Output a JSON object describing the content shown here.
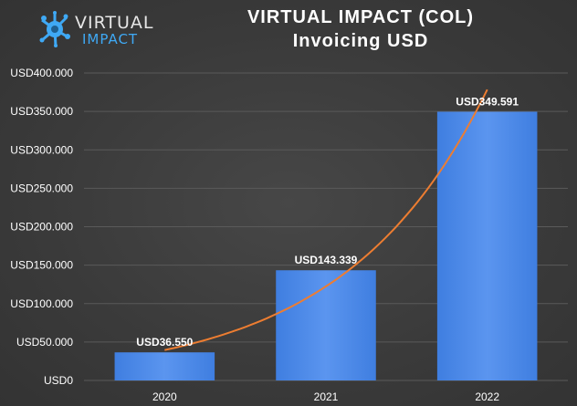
{
  "brand": {
    "logo_top": "VIRTUAL",
    "logo_bottom": "IMPACT",
    "logo_color": "#3fa9f5"
  },
  "chart_data": {
    "type": "bar",
    "title": "VIRTUAL IMPACT (COL)",
    "subtitle": "Invoicing USD",
    "categories": [
      "2020",
      "2021",
      "2022"
    ],
    "values": [
      36550,
      143339,
      349591
    ],
    "data_labels": [
      "USD36.550",
      "USD143.339",
      "USD349.591"
    ],
    "y_ticks": [
      0,
      50000,
      100000,
      150000,
      200000,
      250000,
      300000,
      350000,
      400000
    ],
    "y_tick_labels": [
      "USD0",
      "USD50.000",
      "USD100.000",
      "USD150.000",
      "USD200.000",
      "USD250.000",
      "USD300.000",
      "USD350.000",
      "USD400.000"
    ],
    "ylim": [
      0,
      400000
    ],
    "grid": true,
    "trendline": {
      "type": "exponential",
      "color": "#ed7d31"
    },
    "colors": {
      "bar": "#4a86e8",
      "bar_light": "#6aa2f5",
      "text": "#ffffff",
      "grid": "#5a5a5a"
    }
  }
}
